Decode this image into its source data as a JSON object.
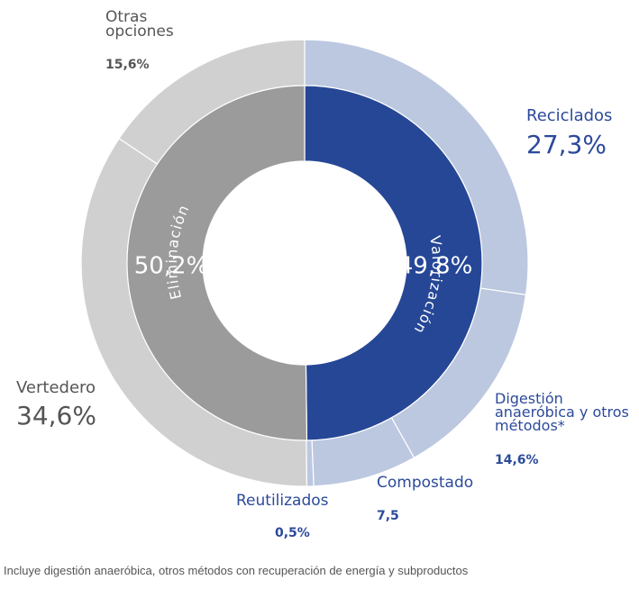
{
  "chart_data": {
    "type": "donut",
    "inner": {
      "categories": [
        "Valorización",
        "Eliminación"
      ],
      "values": [
        49.8,
        50.2
      ],
      "value_labels": [
        "49,8%",
        "50,2%"
      ],
      "colors": [
        "#264796",
        "#9b9b9b"
      ]
    },
    "outer": {
      "categories": [
        "Reciclados",
        "Digestión anaeróbica y otros métodos*",
        "Compostado",
        "Reutilizados",
        "Vertedero",
        "Otras opciones"
      ],
      "values": [
        27.3,
        14.6,
        7.5,
        0.5,
        34.6,
        15.6
      ],
      "value_labels": [
        "27,3%",
        "14,6%",
        "7,5",
        "0,5%",
        "34,6%",
        "15,6%"
      ],
      "colors": [
        "#bcc8e0",
        "#bcc8e0",
        "#bcc8e0",
        "#bcc8e0",
        "#d0d0d0",
        "#d0d0d0"
      ]
    },
    "footnote": "Incluye digestión anaeróbica, otros métodos con recuperación de energía y subproductos"
  }
}
